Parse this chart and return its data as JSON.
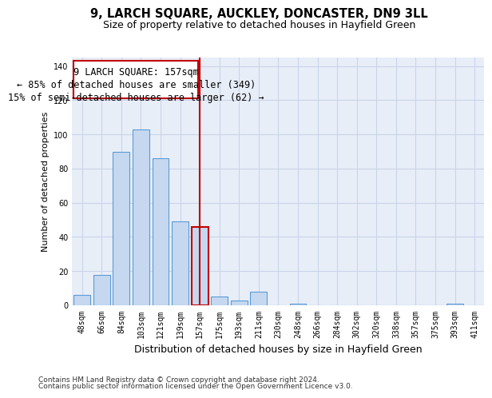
{
  "title": "9, LARCH SQUARE, AUCKLEY, DONCASTER, DN9 3LL",
  "subtitle": "Size of property relative to detached houses in Hayfield Green",
  "xlabel": "Distribution of detached houses by size in Hayfield Green",
  "ylabel": "Number of detached properties",
  "footer_line1": "Contains HM Land Registry data © Crown copyright and database right 2024.",
  "footer_line2": "Contains public sector information licensed under the Open Government Licence v3.0.",
  "annotation_title": "9 LARCH SQUARE: 157sqm",
  "annotation_line2": "← 85% of detached houses are smaller (349)",
  "annotation_line3": "15% of semi-detached houses are larger (62) →",
  "highlight_bar_index": 6,
  "categories": [
    "48sqm",
    "66sqm",
    "84sqm",
    "103sqm",
    "121sqm",
    "139sqm",
    "157sqm",
    "175sqm",
    "193sqm",
    "211sqm",
    "230sqm",
    "248sqm",
    "266sqm",
    "284sqm",
    "302sqm",
    "320sqm",
    "338sqm",
    "357sqm",
    "375sqm",
    "393sqm",
    "411sqm"
  ],
  "values": [
    6,
    18,
    90,
    103,
    86,
    49,
    46,
    5,
    3,
    8,
    0,
    1,
    0,
    0,
    0,
    0,
    0,
    0,
    0,
    1,
    0
  ],
  "bar_color": "#c5d8f0",
  "bar_edge_color": "#5b9bd5",
  "highlight_bar_edge_color": "#c00000",
  "highlight_line_color": "#c00000",
  "annotation_box_edge_color": "#c00000",
  "background_color": "#ffffff",
  "axes_bg_color": "#e8eef8",
  "grid_color": "#c8d4e8",
  "ylim": [
    0,
    145
  ],
  "yticks": [
    0,
    20,
    40,
    60,
    80,
    100,
    120,
    140
  ],
  "title_fontsize": 10.5,
  "subtitle_fontsize": 9,
  "xlabel_fontsize": 9,
  "ylabel_fontsize": 8,
  "tick_fontsize": 7,
  "annotation_fontsize": 8.5,
  "footer_fontsize": 6.5
}
